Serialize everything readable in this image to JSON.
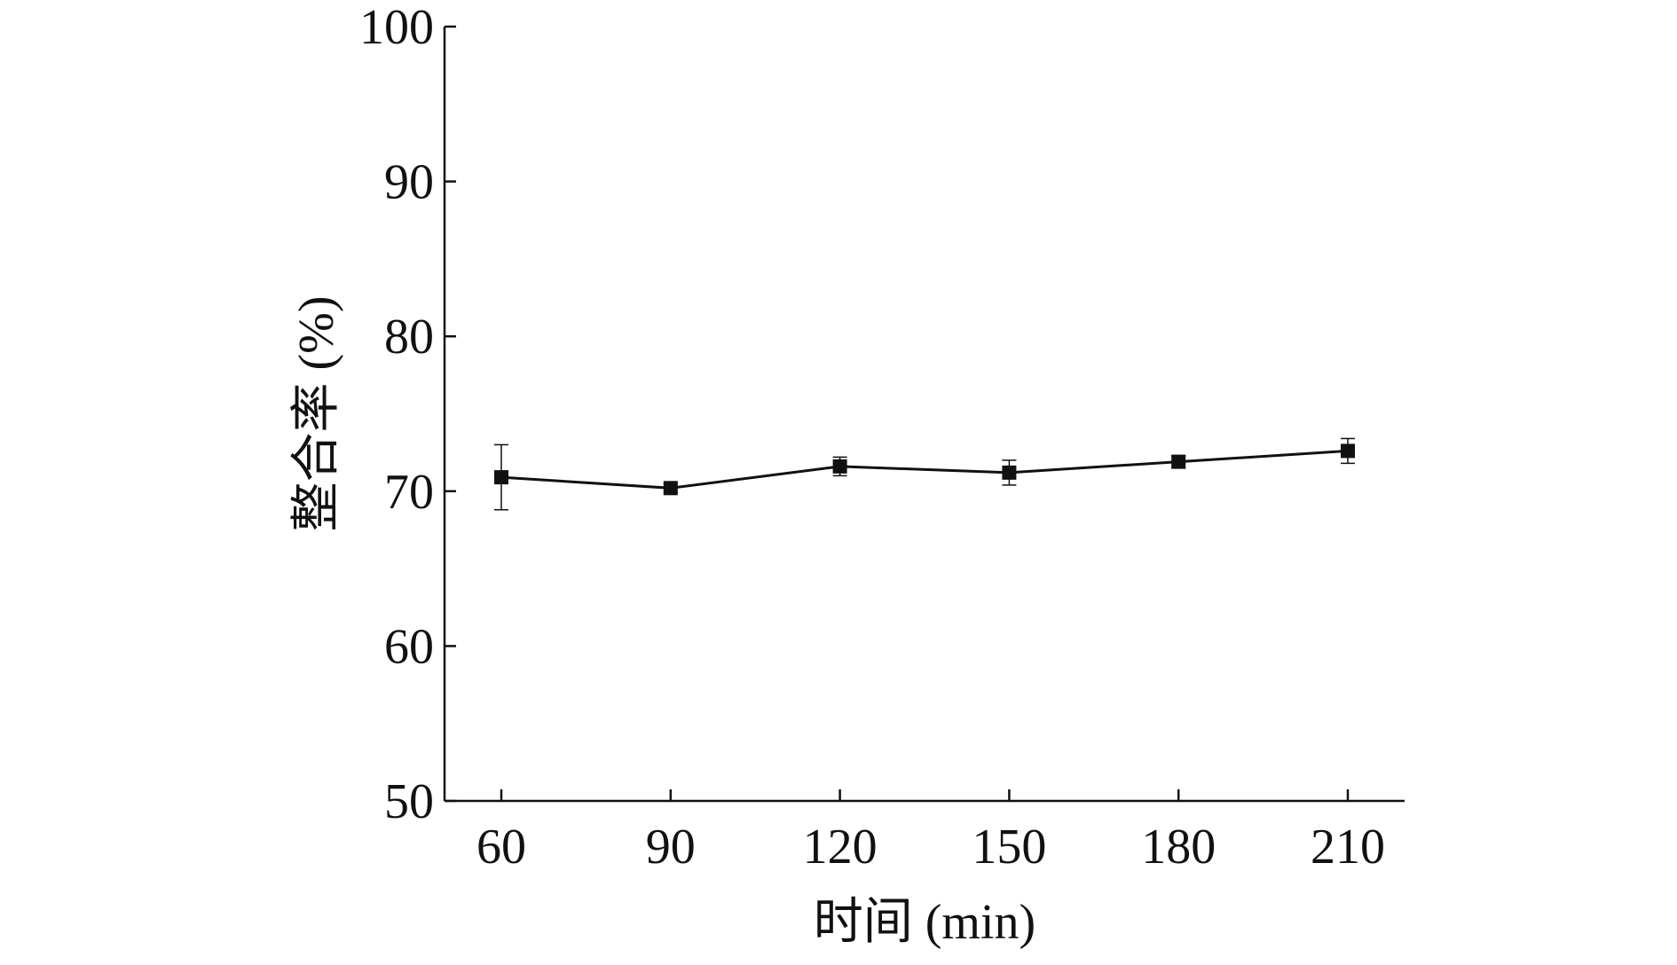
{
  "chart_data": {
    "type": "line",
    "xlabel": "时间 (min)",
    "ylabel": "整合率 (%)",
    "x": [
      60,
      90,
      120,
      150,
      180,
      210
    ],
    "x_tick_labels": [
      "60",
      "90",
      "120",
      "150",
      "180",
      "210"
    ],
    "y_tick_labels": [
      "50",
      "60",
      "70",
      "80",
      "90",
      "100"
    ],
    "ylim": [
      50,
      100
    ],
    "grid": false,
    "series": [
      {
        "values": [
          70.9,
          70.2,
          71.6,
          71.2,
          71.9,
          72.6
        ],
        "errors": [
          2.1,
          0.3,
          0.6,
          0.8,
          0.4,
          0.8
        ],
        "color": "#111111",
        "marker": "square"
      }
    ]
  }
}
